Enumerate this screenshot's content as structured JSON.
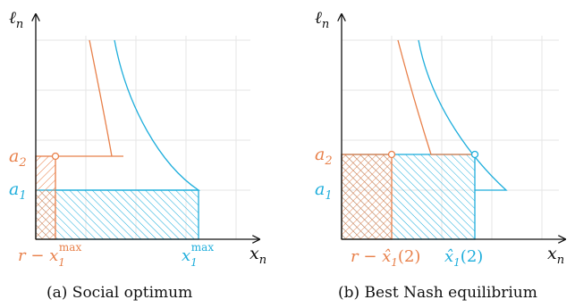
{
  "colors": {
    "orange": "#E8804A",
    "blue": "#1FAEDC",
    "axis": "#111111",
    "grid": "#e6e6e6"
  },
  "panel_a": {
    "y_axis_label": "ℓ",
    "y_axis_sub": "n",
    "x_axis_label": "x",
    "x_axis_sub": "n",
    "a2_label": "a",
    "a2_sub": "2",
    "a1_label": "a",
    "a1_sub": "1",
    "x_orange_label": "r − x",
    "x_orange_sub": "1",
    "x_orange_sup": "max",
    "x_blue_label": "x",
    "x_blue_sub": "1",
    "x_blue_sup": "max",
    "caption": "(a) Social optimum"
  },
  "panel_b": {
    "y_axis_label": "ℓ",
    "y_axis_sub": "n",
    "x_axis_label": "x",
    "x_axis_sub": "n",
    "a2_label": "a",
    "a2_sub": "2",
    "a1_label": "a",
    "a1_sub": "1",
    "x_orange_label": "r − x̂",
    "x_orange_sub": "1",
    "x_orange_arg": "(2)",
    "x_blue_label": "x̂",
    "x_blue_sub": "1",
    "x_blue_arg": "(2)",
    "caption": "(b) Best Nash equilibrium"
  }
}
